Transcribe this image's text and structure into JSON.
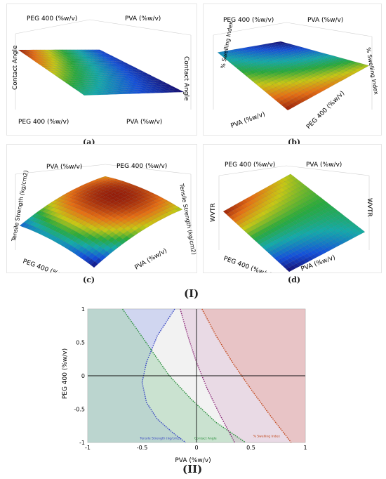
{
  "figure": {
    "group_labels": {
      "I": "(I)",
      "II": "(II)"
    }
  },
  "chart_data": [
    {
      "id": "a",
      "panel_label": "(a)",
      "type": "surface",
      "x_axis_label": "PVA (%w/v)",
      "y_axis_label": "PEG 400 (%w/v)",
      "z_axis_label": "Contact Angle",
      "x_range": [
        -1,
        1
      ],
      "y_range": [
        -1,
        1
      ],
      "z_ticks": [
        20,
        30,
        40,
        50,
        60
      ],
      "corners": {
        "x-1_y-1": 40,
        "x1_y-1": 27,
        "x-1_y1": 57,
        "x1_y1": 32
      }
    },
    {
      "id": "b",
      "panel_label": "(b)",
      "type": "surface",
      "x_axis_label": "PVA (%w/v)",
      "y_axis_label": "PEG 400 (%w/v)",
      "z_axis_label": "% Swelling Index",
      "x_range": [
        -1,
        1
      ],
      "y_range": [
        -1,
        1
      ],
      "z_ticks": [
        30,
        40,
        50,
        60,
        70
      ],
      "corners": {
        "x-1_y-1": 45,
        "x1_y-1": 70,
        "x-1_y1": 33,
        "x1_y1": 58
      }
    },
    {
      "id": "c",
      "panel_label": "(c)",
      "type": "surface",
      "x_axis_label": "PVA (%w/v)",
      "y_axis_label": "PEG 400 (%w/v)",
      "z_axis_label": "Tensile Strength (kg/cm2)",
      "x_range": [
        -1,
        1
      ],
      "y_range": [
        -1,
        1
      ],
      "z_ticks": [
        1.6,
        1.8,
        2,
        2.2,
        2.4,
        2.6
      ],
      "corners": {
        "x-1_y-1": 1.7,
        "x1_y-1": 2.45,
        "x-1_y1": 1.95,
        "x1_y1": 2.6
      }
    },
    {
      "id": "d",
      "panel_label": "(d)",
      "type": "surface",
      "x_axis_label": "PVA (%w/v)",
      "y_axis_label": "PEG 400 (%w/v)",
      "z_axis_label": "WVTR",
      "x_range": [
        -1,
        1
      ],
      "y_range": [
        -1,
        1
      ],
      "z_ticks": [
        10,
        15,
        20,
        25
      ],
      "corners": {
        "x-1_y-1": 12,
        "x1_y-1": 17,
        "x-1_y1": 24,
        "x1_y1": 20
      }
    },
    {
      "id": "overlay",
      "panel_label": "(II)",
      "type": "contour",
      "xlabel": "PVA (%w/v)",
      "ylabel": "PEG 400 (%w/v)",
      "xlim": [
        -1,
        1
      ],
      "ylim": [
        -1,
        1
      ],
      "x_ticks": [
        -1,
        -0.5,
        0,
        0.5,
        1
      ],
      "y_ticks": [
        -1,
        -0.5,
        0,
        0.5,
        1
      ],
      "x_tick_labels": [
        "-1",
        "-0.5",
        "0",
        "0.5",
        "1"
      ],
      "y_tick_labels": [
        "-1",
        "-0.5",
        "0",
        "0.5",
        "1"
      ],
      "background_color": "#f2f2f2",
      "contours": [
        {
          "label": "Tensile Strength (kg/cm2)",
          "color": "#3b49c4",
          "fill": "#b5c0ee",
          "x": [
            -0.2,
            -0.36,
            -0.46,
            -0.5,
            -0.46,
            -0.36,
            -0.22,
            -0.1
          ],
          "y": [
            1,
            0.6,
            0.2,
            -0.1,
            -0.4,
            -0.65,
            -0.85,
            -1
          ]
        },
        {
          "label": "Contact Angle",
          "color": "#2a8f3c",
          "fill": "#a9d6b5",
          "x": [
            -0.68,
            -0.55,
            -0.4,
            -0.25,
            -0.05,
            0.18,
            0.45
          ],
          "y": [
            1,
            0.7,
            0.35,
            0,
            -0.35,
            -0.7,
            -1
          ]
        },
        {
          "label": "% Swelling Index",
          "color": "#c24a1f",
          "fill": "#efb39b",
          "x": [
            0.05,
            0.18,
            0.33,
            0.5,
            0.68,
            0.87
          ],
          "y": [
            1,
            0.6,
            0.2,
            -0.2,
            -0.6,
            -1
          ]
        },
        {
          "label": "WVTR",
          "color": "#8c2a7a",
          "fill": "#d9b0cf",
          "x": [
            -0.15,
            -0.08,
            0,
            0.1,
            0.22,
            0.35
          ],
          "y": [
            1,
            0.6,
            0.2,
            -0.2,
            -0.6,
            -1
          ]
        }
      ]
    }
  ]
}
